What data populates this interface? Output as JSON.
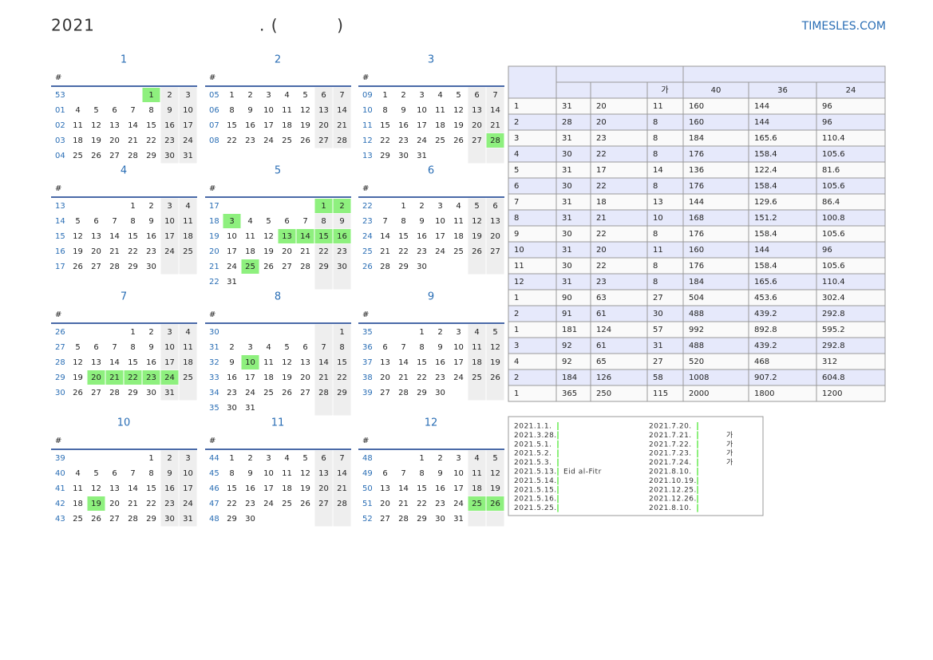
{
  "header": {
    "title": "2021",
    "subtitle": ". (          )",
    "brand": "TIMESLES.COM"
  },
  "months": [
    {
      "title": "1",
      "week_header": "#",
      "highlight": [
        1
      ],
      "weeks": [
        [
          "53",
          null,
          null,
          null,
          null,
          1,
          2,
          3
        ],
        [
          "01",
          4,
          5,
          6,
          7,
          8,
          9,
          10
        ],
        [
          "02",
          11,
          12,
          13,
          14,
          15,
          16,
          17
        ],
        [
          "03",
          18,
          19,
          20,
          21,
          22,
          23,
          24
        ],
        [
          "04",
          25,
          26,
          27,
          28,
          29,
          30,
          31
        ]
      ]
    },
    {
      "title": "2",
      "week_header": "#",
      "highlight": [],
      "weeks": [
        [
          "05",
          1,
          2,
          3,
          4,
          5,
          6,
          7
        ],
        [
          "06",
          8,
          9,
          10,
          11,
          12,
          13,
          14
        ],
        [
          "07",
          15,
          16,
          17,
          18,
          19,
          20,
          21
        ],
        [
          "08",
          22,
          23,
          24,
          25,
          26,
          27,
          28
        ]
      ]
    },
    {
      "title": "3",
      "week_header": "#",
      "highlight": [
        28
      ],
      "weeks": [
        [
          "09",
          1,
          2,
          3,
          4,
          5,
          6,
          7
        ],
        [
          "10",
          8,
          9,
          10,
          11,
          12,
          13,
          14
        ],
        [
          "11",
          15,
          16,
          17,
          18,
          19,
          20,
          21
        ],
        [
          "12",
          22,
          23,
          24,
          25,
          26,
          27,
          28
        ],
        [
          "13",
          29,
          30,
          31,
          null,
          null,
          null,
          null
        ]
      ]
    },
    {
      "title": "4",
      "week_header": "#",
      "highlight": [],
      "weeks": [
        [
          "13",
          null,
          null,
          null,
          1,
          2,
          3,
          4
        ],
        [
          "14",
          5,
          6,
          7,
          8,
          9,
          10,
          11
        ],
        [
          "15",
          12,
          13,
          14,
          15,
          16,
          17,
          18
        ],
        [
          "16",
          19,
          20,
          21,
          22,
          23,
          24,
          25
        ],
        [
          "17",
          26,
          27,
          28,
          29,
          30,
          null,
          null
        ]
      ]
    },
    {
      "title": "5",
      "week_header": "#",
      "highlight": [
        1,
        2,
        3,
        13,
        14,
        15,
        16,
        25
      ],
      "weeks": [
        [
          "17",
          null,
          null,
          null,
          null,
          null,
          1,
          2
        ],
        [
          "18",
          3,
          4,
          5,
          6,
          7,
          8,
          9
        ],
        [
          "19",
          10,
          11,
          12,
          13,
          14,
          15,
          16
        ],
        [
          "20",
          17,
          18,
          19,
          20,
          21,
          22,
          23
        ],
        [
          "21",
          24,
          25,
          26,
          27,
          28,
          29,
          30
        ],
        [
          "22",
          31,
          null,
          null,
          null,
          null,
          null,
          null
        ]
      ]
    },
    {
      "title": "6",
      "week_header": "#",
      "highlight": [],
      "weeks": [
        [
          "22",
          null,
          1,
          2,
          3,
          4,
          5,
          6
        ],
        [
          "23",
          7,
          8,
          9,
          10,
          11,
          12,
          13
        ],
        [
          "24",
          14,
          15,
          16,
          17,
          18,
          19,
          20
        ],
        [
          "25",
          21,
          22,
          23,
          24,
          25,
          26,
          27
        ],
        [
          "26",
          28,
          29,
          30,
          null,
          null,
          null,
          null
        ]
      ]
    },
    {
      "title": "7",
      "week_header": "#",
      "highlight": [
        20,
        21,
        22,
        23,
        24
      ],
      "weeks": [
        [
          "26",
          null,
          null,
          null,
          1,
          2,
          3,
          4
        ],
        [
          "27",
          5,
          6,
          7,
          8,
          9,
          10,
          11
        ],
        [
          "28",
          12,
          13,
          14,
          15,
          16,
          17,
          18
        ],
        [
          "29",
          19,
          20,
          21,
          22,
          23,
          24,
          25
        ],
        [
          "30",
          26,
          27,
          28,
          29,
          30,
          31,
          null
        ]
      ]
    },
    {
      "title": "8",
      "week_header": "#",
      "highlight": [
        10
      ],
      "weeks": [
        [
          "30",
          null,
          null,
          null,
          null,
          null,
          null,
          1
        ],
        [
          "31",
          2,
          3,
          4,
          5,
          6,
          7,
          8
        ],
        [
          "32",
          9,
          10,
          11,
          12,
          13,
          14,
          15
        ],
        [
          "33",
          16,
          17,
          18,
          19,
          20,
          21,
          22
        ],
        [
          "34",
          23,
          24,
          25,
          26,
          27,
          28,
          29
        ],
        [
          "35",
          30,
          31,
          null,
          null,
          null,
          null,
          null
        ]
      ]
    },
    {
      "title": "9",
      "week_header": "#",
      "highlight": [],
      "weeks": [
        [
          "35",
          null,
          null,
          1,
          2,
          3,
          4,
          5
        ],
        [
          "36",
          6,
          7,
          8,
          9,
          10,
          11,
          12
        ],
        [
          "37",
          13,
          14,
          15,
          16,
          17,
          18,
          19
        ],
        [
          "38",
          20,
          21,
          22,
          23,
          24,
          25,
          26
        ],
        [
          "39",
          27,
          28,
          29,
          30,
          null,
          null,
          null
        ]
      ]
    },
    {
      "title": "10",
      "week_header": "#",
      "highlight": [
        19
      ],
      "weeks": [
        [
          "39",
          null,
          null,
          null,
          null,
          1,
          2,
          3
        ],
        [
          "40",
          4,
          5,
          6,
          7,
          8,
          9,
          10
        ],
        [
          "41",
          11,
          12,
          13,
          14,
          15,
          16,
          17
        ],
        [
          "42",
          18,
          19,
          20,
          21,
          22,
          23,
          24
        ],
        [
          "43",
          25,
          26,
          27,
          28,
          29,
          30,
          31
        ]
      ]
    },
    {
      "title": "11",
      "week_header": "#",
      "highlight": [],
      "weeks": [
        [
          "44",
          1,
          2,
          3,
          4,
          5,
          6,
          7
        ],
        [
          "45",
          8,
          9,
          10,
          11,
          12,
          13,
          14
        ],
        [
          "46",
          15,
          16,
          17,
          18,
          19,
          20,
          21
        ],
        [
          "47",
          22,
          23,
          24,
          25,
          26,
          27,
          28
        ],
        [
          "48",
          29,
          30,
          null,
          null,
          null,
          null,
          null
        ]
      ]
    },
    {
      "title": "12",
      "week_header": "#",
      "highlight": [
        25,
        26
      ],
      "weeks": [
        [
          "48",
          null,
          null,
          1,
          2,
          3,
          4,
          5
        ],
        [
          "49",
          6,
          7,
          8,
          9,
          10,
          11,
          12
        ],
        [
          "50",
          13,
          14,
          15,
          16,
          17,
          18,
          19
        ],
        [
          "51",
          20,
          21,
          22,
          23,
          24,
          25,
          26
        ],
        [
          "52",
          27,
          28,
          29,
          30,
          31,
          null,
          null
        ]
      ]
    }
  ],
  "table": {
    "header": {
      "col3": "가",
      "hours": [
        "40",
        "36",
        "24"
      ]
    },
    "rows": [
      [
        "1",
        31,
        20,
        11,
        160,
        144,
        96
      ],
      [
        "2",
        28,
        20,
        8,
        160,
        144,
        96
      ],
      [
        "3",
        31,
        23,
        8,
        184,
        165.6,
        110.4
      ],
      [
        "4",
        30,
        22,
        8,
        176,
        158.4,
        105.6
      ],
      [
        "5",
        31,
        17,
        14,
        136,
        122.4,
        81.6
      ],
      [
        "6",
        30,
        22,
        8,
        176,
        158.4,
        105.6
      ],
      [
        "7",
        31,
        18,
        13,
        144,
        129.6,
        86.4
      ],
      [
        "8",
        31,
        21,
        10,
        168,
        151.2,
        100.8
      ],
      [
        "9",
        30,
        22,
        8,
        176,
        158.4,
        105.6
      ],
      [
        "10",
        31,
        20,
        11,
        160,
        144,
        96
      ],
      [
        "11",
        30,
        22,
        8,
        176,
        158.4,
        105.6
      ],
      [
        "12",
        31,
        23,
        8,
        184,
        165.6,
        110.4
      ],
      [
        "1",
        90,
        63,
        27,
        504,
        453.6,
        302.4
      ],
      [
        "2",
        91,
        61,
        30,
        488,
        439.2,
        292.8
      ],
      [
        "1",
        181,
        124,
        57,
        992,
        892.8,
        595.2
      ],
      [
        "3",
        92,
        61,
        31,
        488,
        439.2,
        292.8
      ],
      [
        "4",
        92,
        65,
        27,
        520,
        468,
        312
      ],
      [
        "2",
        184,
        126,
        58,
        1008,
        907.2,
        604.8
      ],
      [
        "1",
        365,
        250,
        115,
        2000,
        1800,
        1200
      ]
    ]
  },
  "holidays": {
    "left": [
      {
        "date": "2021.1.1."
      },
      {
        "date": "2021.3.28."
      },
      {
        "date": "2021.5.1."
      },
      {
        "date": "2021.5.2."
      },
      {
        "date": "2021.5.3."
      },
      {
        "date": "2021.5.13.",
        "name": "Eid al-Fitr"
      },
      {
        "date": "2021.5.14."
      },
      {
        "date": "2021.5.15."
      },
      {
        "date": "2021.5.16."
      },
      {
        "date": "2021.5.25."
      }
    ],
    "right": [
      {
        "date": "2021.7.20."
      },
      {
        "date": "2021.7.21.",
        "name": "가"
      },
      {
        "date": "2021.7.22.",
        "name": "가"
      },
      {
        "date": "2021.7.23.",
        "name": "가"
      },
      {
        "date": "2021.7.24.",
        "name": "가"
      },
      {
        "date": "2021.8.10."
      },
      {
        "date": "2021.10.19."
      },
      {
        "date": "2021.12.25."
      },
      {
        "date": "2021.12.26."
      },
      {
        "date": "2021.8.10."
      }
    ]
  }
}
